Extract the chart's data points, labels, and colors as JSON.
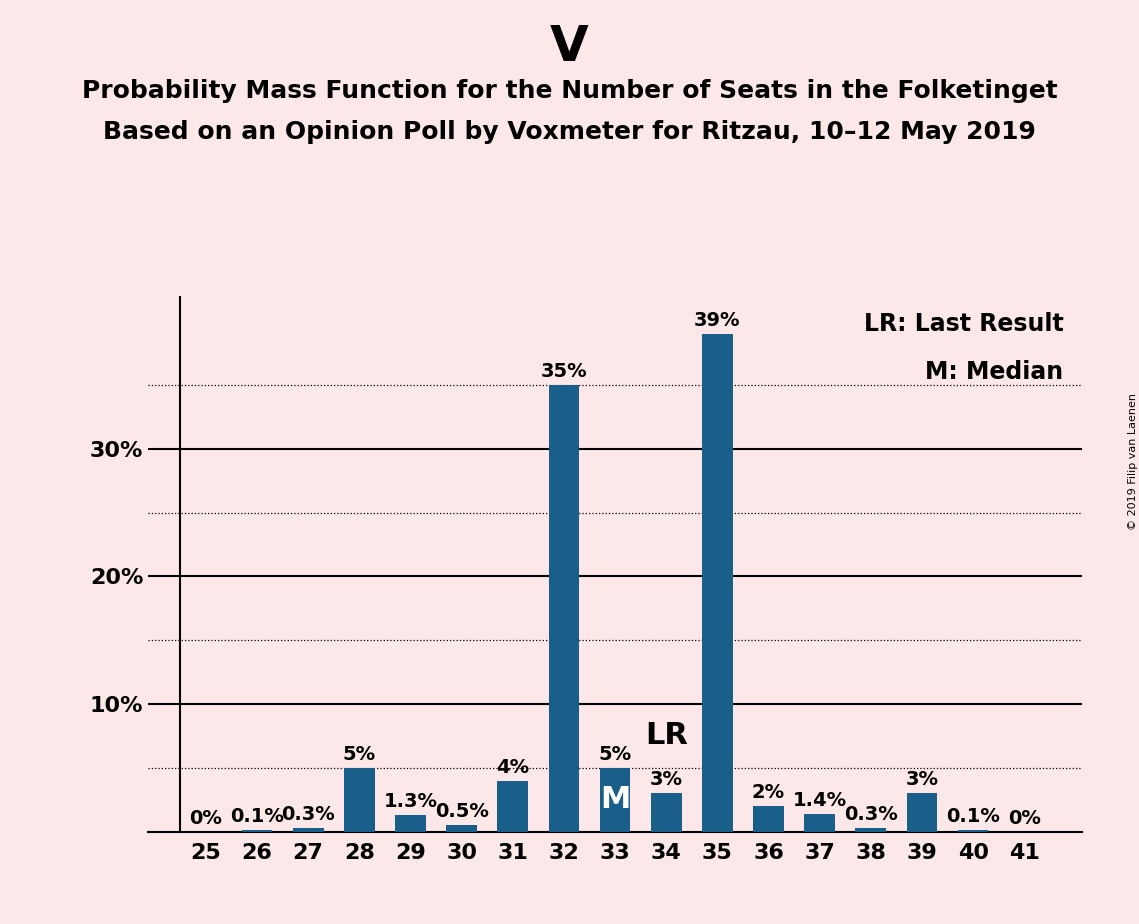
{
  "title": "V",
  "subtitle1": "Probability Mass Function for the Number of Seats in the Folketinget",
  "subtitle2": "Based on an Opinion Poll by Voxmeter for Ritzau, 10–12 May 2019",
  "categories": [
    25,
    26,
    27,
    28,
    29,
    30,
    31,
    32,
    33,
    34,
    35,
    36,
    37,
    38,
    39,
    40,
    41
  ],
  "values": [
    0.0,
    0.1,
    0.3,
    5.0,
    1.3,
    0.5,
    4.0,
    35.0,
    5.0,
    3.0,
    39.0,
    2.0,
    1.4,
    0.3,
    3.0,
    0.1,
    0.0
  ],
  "labels": [
    "0%",
    "0.1%",
    "0.3%",
    "5%",
    "1.3%",
    "0.5%",
    "4%",
    "35%",
    "5%",
    "3%",
    "39%",
    "2%",
    "1.4%",
    "0.3%",
    "3%",
    "0.1%",
    "0%"
  ],
  "bar_color": "#1a5f8a",
  "background_color": "#fce8e8",
  "median_bar": 33,
  "lr_bar": 34,
  "legend_lr": "LR: Last Result",
  "legend_m": "M: Median",
  "copyright": "© 2019 Filip van Laenen",
  "ylim": [
    0,
    42
  ],
  "ytick_positions": [
    0,
    10,
    20,
    30
  ],
  "ytick_labels": [
    "",
    "10%",
    "20%",
    "30%"
  ],
  "grid_dotted": [
    5,
    15,
    25,
    35
  ],
  "grid_solid": [
    10,
    20,
    30
  ],
  "title_fontsize": 36,
  "subtitle_fontsize": 18,
  "label_fontsize": 14,
  "tick_fontsize": 16,
  "legend_fontsize": 17,
  "bar_label_fontsize": 14,
  "lr_label_fontsize": 22,
  "m_label_fontsize": 22
}
